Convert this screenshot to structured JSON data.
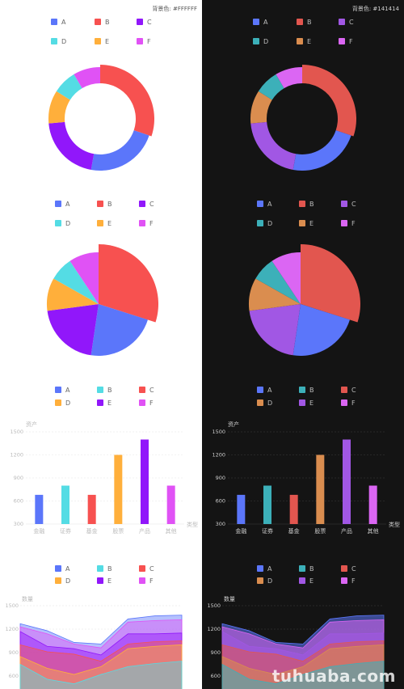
{
  "background_labels": {
    "light": "背景色: #FFFFFF",
    "dark": "背景色: #141414"
  },
  "watermark": "tuhuaba.com",
  "palettes": {
    "light": [
      "#5B76FA",
      "#F75150",
      "#9117FA",
      "#54DCE4",
      "#FFAF3B",
      "#E052F5"
    ],
    "dark": [
      "#5B76FA",
      "#E2564F",
      "#A157E4",
      "#3CB0B9",
      "#DA8D4F",
      "#DB66F3"
    ]
  },
  "chart_data": [
    {
      "type": "pie",
      "variant": "donut",
      "legend": [
        "A",
        "B",
        "C",
        "D",
        "E",
        "F"
      ],
      "values": [
        24,
        32,
        22,
        8,
        11,
        9
      ],
      "highlighted": "B"
    },
    {
      "type": "pie",
      "legend": [
        "A",
        "B",
        "C",
        "D",
        "E",
        "F"
      ],
      "values": [
        24,
        32,
        22,
        8,
        11,
        10
      ],
      "highlighted": "B"
    },
    {
      "type": "bar",
      "legend": [
        "A",
        "B",
        "C",
        "D",
        "E",
        "F"
      ],
      "categories": [
        "金融",
        "证券",
        "基金",
        "股票",
        "产品",
        "其他"
      ],
      "values": [
        680,
        800,
        680,
        1200,
        1400,
        800
      ],
      "ylabel": "资产",
      "xlabel": "类型",
      "yticks": [
        300,
        600,
        900,
        1200,
        1500
      ],
      "ylim": [
        300,
        1500
      ]
    },
    {
      "type": "area",
      "legend": [
        "A",
        "B",
        "C",
        "D",
        "E",
        "F"
      ],
      "ylabel": "数量",
      "yticks": [
        600,
        900,
        1200,
        1500
      ],
      "ylim": [
        450,
        1500
      ],
      "x_points": 7,
      "series": [
        {
          "values": [
            1270,
            1180,
            1030,
            1010,
            1330,
            1370,
            1380
          ]
        },
        {
          "values": [
            1230,
            1140,
            1010,
            960,
            1290,
            1310,
            1320
          ]
        },
        {
          "values": [
            1170,
            980,
            950,
            870,
            1140,
            1140,
            1150
          ]
        },
        {
          "values": [
            1000,
            910,
            880,
            790,
            1010,
            1040,
            1050
          ]
        },
        {
          "values": [
            850,
            700,
            620,
            720,
            950,
            980,
            1000
          ]
        },
        {
          "values": [
            750,
            560,
            500,
            620,
            720,
            760,
            790
          ]
        }
      ]
    }
  ]
}
